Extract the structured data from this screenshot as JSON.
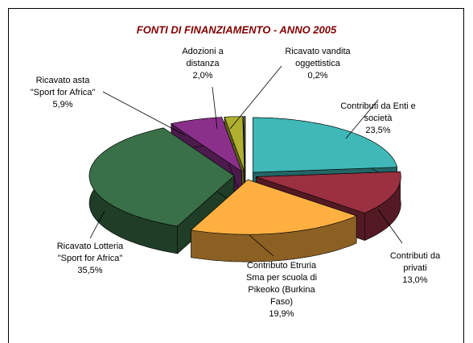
{
  "chart_data": {
    "type": "pie3d",
    "title": "FONTI DI FINANZIAMENTO - ANNO 2005",
    "categories": [
      [
        "Contributi da Enti e",
        "società"
      ],
      [
        "Contributi da",
        "privati"
      ],
      [
        "Contributo Etruria",
        "Sma per scuola di",
        "Pikeoko (Burkina",
        "Faso)"
      ],
      [
        "Ricavato Lotteria",
        "\"Sport for Africa\""
      ],
      [
        "Ricavato asta",
        "\"Sport for Africa\""
      ],
      [
        "Adozioni a",
        "distanza"
      ],
      [
        "Ricavato vandita",
        "oggettistica"
      ]
    ],
    "values": [
      23.5,
      13.0,
      19.9,
      35.5,
      5.9,
      2.0,
      0.2
    ],
    "value_labels": [
      "23,5%",
      "13,0%",
      "19,9%",
      "35,5%",
      "5,9%",
      "2,0%",
      "0,2%"
    ],
    "colors": [
      "#40b8b8",
      "#9a3040",
      "#ffb040",
      "#3a7048",
      "#8a308a",
      "#b0b030",
      "#6a6a40"
    ]
  }
}
